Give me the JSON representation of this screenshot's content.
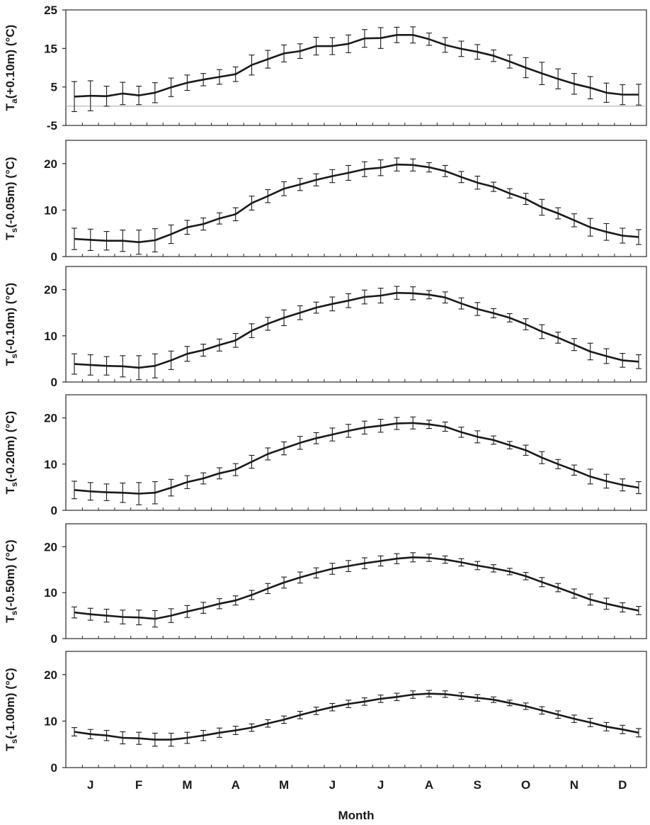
{
  "xlabel": "Month",
  "month_labels": [
    "J",
    "F",
    "M",
    "A",
    "M",
    "J",
    "J",
    "A",
    "S",
    "O",
    "N",
    "D"
  ],
  "colors": {
    "line": "#1a1a1a",
    "frame": "#2a2a2a",
    "zero_line": "#9a9a9a"
  },
  "chart_data": [
    {
      "type": "line",
      "ylabel": "Ta(+0.10m) (°C)",
      "ylabel_main": "T",
      "ylabel_sub": "a",
      "ylabel_rest": "(+0.10m) (°C)",
      "ylim": [
        -5,
        25
      ],
      "yticks": [
        -5,
        5,
        15,
        25
      ],
      "zero_line": true,
      "mean": [
        2.5,
        2.7,
        2.6,
        3.3,
        2.8,
        3.5,
        4.9,
        6.1,
        6.9,
        7.6,
        8.3,
        10.7,
        12.2,
        13.7,
        14.3,
        15.6,
        15.6,
        16.2,
        17.6,
        17.7,
        18.5,
        18.5,
        17.4,
        15.9,
        14.9,
        14.1,
        13.1,
        11.6,
        10.0,
        8.5,
        7.1,
        5.8,
        4.8,
        3.5,
        3.0,
        3.0
      ],
      "err": [
        3.9,
        3.9,
        2.6,
        2.9,
        2.4,
        2.6,
        2.4,
        2.0,
        1.6,
        1.9,
        1.9,
        2.6,
        2.3,
        2.2,
        1.9,
        2.3,
        2.2,
        2.3,
        2.3,
        2.7,
        2.0,
        2.1,
        1.6,
        1.9,
        2.0,
        1.9,
        1.5,
        1.7,
        2.6,
        2.9,
        2.6,
        2.7,
        2.9,
        2.5,
        2.6,
        2.7
      ]
    },
    {
      "type": "line",
      "ylabel": "Ts(-0.05m) (°C)",
      "ylabel_main": "T",
      "ylabel_sub": "s",
      "ylabel_rest": "(-0.05m) (°C)",
      "ylim": [
        0,
        25
      ],
      "yticks": [
        0,
        10,
        20
      ],
      "zero_line": false,
      "mean": [
        3.8,
        3.6,
        3.4,
        3.4,
        3.1,
        3.5,
        4.8,
        6.3,
        7.0,
        8.2,
        9.1,
        11.5,
        13.0,
        14.6,
        15.5,
        16.5,
        17.3,
        18.0,
        18.8,
        19.1,
        19.8,
        19.7,
        19.2,
        18.4,
        17.1,
        15.9,
        15.0,
        13.6,
        12.4,
        10.6,
        9.3,
        7.8,
        6.3,
        5.3,
        4.5,
        4.2
      ],
      "err": [
        2.3,
        2.3,
        2.0,
        2.3,
        2.6,
        2.5,
        2.0,
        1.5,
        1.3,
        1.2,
        1.4,
        1.5,
        1.4,
        1.5,
        1.3,
        1.3,
        1.4,
        1.6,
        1.6,
        1.7,
        1.4,
        1.3,
        1.0,
        1.2,
        1.2,
        1.4,
        1.0,
        1.0,
        1.2,
        1.7,
        1.2,
        1.4,
        1.9,
        1.8,
        1.6,
        1.6
      ]
    },
    {
      "type": "line",
      "ylabel": "Ts(-0.10m) (°C)",
      "ylabel_main": "T",
      "ylabel_sub": "s",
      "ylabel_rest": "(-0.10m) (°C)",
      "ylim": [
        0,
        25
      ],
      "yticks": [
        0,
        10,
        20
      ],
      "zero_line": false,
      "mean": [
        3.9,
        3.7,
        3.5,
        3.4,
        3.1,
        3.5,
        4.7,
        6.1,
        6.9,
        8.0,
        9.0,
        11.1,
        12.6,
        13.9,
        15.0,
        16.1,
        16.9,
        17.6,
        18.4,
        18.7,
        19.3,
        19.2,
        18.9,
        18.3,
        17.0,
        15.8,
        14.9,
        13.9,
        12.5,
        10.9,
        9.6,
        8.1,
        6.6,
        5.6,
        4.7,
        4.4
      ],
      "err": [
        2.2,
        2.2,
        2.0,
        2.3,
        2.6,
        2.6,
        2.0,
        1.6,
        1.3,
        1.3,
        1.5,
        1.5,
        1.4,
        1.7,
        1.5,
        1.2,
        1.5,
        1.5,
        1.5,
        1.6,
        1.4,
        1.4,
        0.9,
        1.2,
        1.2,
        1.4,
        1.0,
        0.9,
        1.2,
        1.5,
        1.2,
        1.3,
        1.8,
        1.6,
        1.5,
        1.5
      ]
    },
    {
      "type": "line",
      "ylabel": "Ts(-0.20m) (°C)",
      "ylabel_main": "T",
      "ylabel_sub": "s",
      "ylabel_rest": "(-0.20m) (°C)",
      "ylim": [
        0,
        25
      ],
      "yticks": [
        0,
        10,
        20
      ],
      "zero_line": false,
      "mean": [
        4.4,
        4.1,
        3.9,
        3.8,
        3.6,
        3.8,
        4.9,
        6.1,
        6.9,
        8.0,
        8.8,
        10.5,
        12.2,
        13.4,
        14.6,
        15.6,
        16.4,
        17.2,
        17.9,
        18.3,
        18.8,
        18.9,
        18.6,
        18.1,
        16.9,
        15.9,
        15.2,
        14.1,
        13.0,
        11.4,
        10.0,
        8.7,
        7.3,
        6.3,
        5.5,
        4.9
      ],
      "err": [
        1.9,
        1.9,
        1.8,
        2.1,
        2.4,
        2.4,
        1.8,
        1.4,
        1.2,
        1.2,
        1.3,
        1.4,
        1.3,
        1.4,
        1.4,
        1.2,
        1.4,
        1.4,
        1.4,
        1.4,
        1.3,
        1.3,
        0.9,
        1.0,
        1.1,
        1.3,
        0.9,
        0.8,
        1.1,
        1.3,
        1.0,
        1.1,
        1.6,
        1.5,
        1.3,
        1.3
      ]
    },
    {
      "type": "line",
      "ylabel": "Ts(-0.50m) (°C)",
      "ylabel_main": "T",
      "ylabel_sub": "s",
      "ylabel_rest": "(-0.50m) (°C)",
      "ylim": [
        0,
        25
      ],
      "yticks": [
        0,
        10,
        20
      ],
      "zero_line": false,
      "mean": [
        5.7,
        5.3,
        5.0,
        4.7,
        4.6,
        4.3,
        5.0,
        5.9,
        6.7,
        7.6,
        8.3,
        9.5,
        10.9,
        12.2,
        13.3,
        14.3,
        15.2,
        15.8,
        16.4,
        16.9,
        17.4,
        17.7,
        17.6,
        17.2,
        16.6,
        15.9,
        15.3,
        14.6,
        13.6,
        12.3,
        11.1,
        9.8,
        8.5,
        7.6,
        6.8,
        6.1
      ],
      "err": [
        1.2,
        1.3,
        1.4,
        1.5,
        1.6,
        1.8,
        1.5,
        1.3,
        1.2,
        1.1,
        1.0,
        1.0,
        1.1,
        1.2,
        1.2,
        1.1,
        1.2,
        1.2,
        1.2,
        1.1,
        1.1,
        1.0,
        0.8,
        0.8,
        0.8,
        0.9,
        0.8,
        0.7,
        0.8,
        1.0,
        0.9,
        1.0,
        1.2,
        1.2,
        1.0,
        0.9
      ]
    },
    {
      "type": "line",
      "ylabel": "Ts(-1.00m) (°C)",
      "ylabel_main": "T",
      "ylabel_sub": "s",
      "ylabel_rest": "(-1.00m) (°C)",
      "ylim": [
        0,
        25
      ],
      "yticks": [
        0,
        10,
        20
      ],
      "zero_line": false,
      "mean": [
        7.7,
        7.2,
        6.9,
        6.4,
        6.3,
        6.0,
        6.0,
        6.4,
        6.9,
        7.5,
        8.0,
        8.6,
        9.5,
        10.3,
        11.3,
        12.2,
        13.0,
        13.7,
        14.2,
        14.8,
        15.2,
        15.7,
        15.9,
        15.8,
        15.4,
        15.0,
        14.6,
        13.9,
        13.2,
        12.3,
        11.4,
        10.5,
        9.7,
        8.8,
        8.2,
        7.5
      ],
      "err": [
        0.9,
        1.0,
        1.1,
        1.3,
        1.3,
        1.4,
        1.4,
        1.2,
        1.1,
        1.0,
        0.9,
        0.8,
        0.8,
        0.8,
        0.8,
        0.8,
        0.8,
        0.8,
        0.8,
        0.8,
        0.8,
        0.8,
        0.7,
        0.7,
        0.7,
        0.7,
        0.6,
        0.6,
        0.7,
        0.8,
        0.8,
        0.8,
        0.9,
        0.9,
        0.9,
        0.9
      ]
    }
  ]
}
